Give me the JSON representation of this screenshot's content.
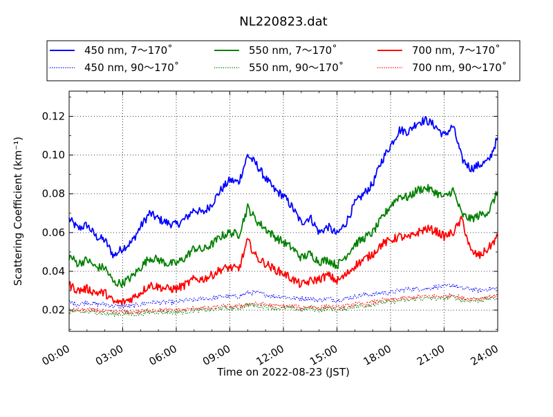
{
  "chart_data": {
    "type": "line",
    "title": "NL220823.dat",
    "xlabel": "Time on 2022-08-23 (JST)",
    "ylabel": "Scattering Coefficient (km⁻¹)",
    "x_unit": "hours",
    "xlim": [
      0,
      24
    ],
    "ylim": [
      0.009,
      0.133
    ],
    "x_ticks": [
      0,
      3,
      6,
      9,
      12,
      15,
      18,
      21,
      24
    ],
    "x_tick_labels": [
      "00:00",
      "03:00",
      "06:00",
      "09:00",
      "12:00",
      "15:00",
      "18:00",
      "21:00",
      "24:00"
    ],
    "y_ticks": [
      0.02,
      0.04,
      0.06,
      0.08,
      0.1,
      0.12
    ],
    "y_tick_labels": [
      "0.02",
      "0.04",
      "0.06",
      "0.08",
      "0.10",
      "0.12"
    ],
    "grid": true,
    "legend_position": "top",
    "x": [
      0,
      0.5,
      1,
      1.5,
      2,
      2.5,
      3,
      3.5,
      4,
      4.5,
      5,
      5.5,
      6,
      6.5,
      7,
      7.5,
      8,
      8.5,
      9,
      9.5,
      10,
      10.5,
      11,
      11.5,
      12,
      12.5,
      13,
      13.5,
      14,
      14.5,
      15,
      15.5,
      16,
      16.5,
      17,
      17.5,
      18,
      18.5,
      19,
      19.5,
      20,
      20.5,
      21,
      21.5,
      22,
      22.5,
      23,
      23.5,
      24
    ],
    "series": [
      {
        "name": "450 nm, 7～170˚",
        "color": "#0000ff",
        "style": "solid",
        "values": [
          0.067,
          0.062,
          0.064,
          0.058,
          0.056,
          0.048,
          0.052,
          0.055,
          0.063,
          0.07,
          0.067,
          0.065,
          0.064,
          0.067,
          0.072,
          0.07,
          0.075,
          0.082,
          0.087,
          0.086,
          0.1,
          0.095,
          0.088,
          0.082,
          0.079,
          0.073,
          0.065,
          0.068,
          0.06,
          0.063,
          0.059,
          0.065,
          0.075,
          0.08,
          0.085,
          0.097,
          0.105,
          0.113,
          0.112,
          0.117,
          0.118,
          0.115,
          0.11,
          0.115,
          0.098,
          0.093,
          0.095,
          0.097,
          0.109
        ]
      },
      {
        "name": "450 nm, 90～170˚",
        "color": "#0000ff",
        "style": "dotted",
        "values": [
          0.024,
          0.023,
          0.024,
          0.023,
          0.023,
          0.022,
          0.022,
          0.022,
          0.023,
          0.024,
          0.024,
          0.024,
          0.024,
          0.025,
          0.025,
          0.026,
          0.026,
          0.027,
          0.027,
          0.027,
          0.029,
          0.029,
          0.028,
          0.027,
          0.027,
          0.026,
          0.026,
          0.026,
          0.025,
          0.026,
          0.025,
          0.026,
          0.027,
          0.028,
          0.028,
          0.029,
          0.029,
          0.03,
          0.031,
          0.031,
          0.031,
          0.032,
          0.032,
          0.033,
          0.031,
          0.031,
          0.03,
          0.031,
          0.031
        ]
      },
      {
        "name": "550 nm, 7～170˚",
        "color": "#008000",
        "style": "solid",
        "values": [
          0.048,
          0.044,
          0.046,
          0.042,
          0.042,
          0.034,
          0.034,
          0.037,
          0.042,
          0.047,
          0.046,
          0.044,
          0.044,
          0.047,
          0.052,
          0.051,
          0.054,
          0.058,
          0.06,
          0.059,
          0.073,
          0.066,
          0.062,
          0.058,
          0.055,
          0.052,
          0.047,
          0.049,
          0.045,
          0.046,
          0.043,
          0.048,
          0.054,
          0.057,
          0.06,
          0.067,
          0.074,
          0.079,
          0.078,
          0.082,
          0.083,
          0.081,
          0.078,
          0.082,
          0.069,
          0.067,
          0.069,
          0.071,
          0.081
        ]
      },
      {
        "name": "550 nm, 90～170˚",
        "color": "#008000",
        "style": "dotted",
        "values": [
          0.019,
          0.019,
          0.019,
          0.019,
          0.018,
          0.018,
          0.018,
          0.018,
          0.018,
          0.019,
          0.019,
          0.019,
          0.019,
          0.019,
          0.02,
          0.02,
          0.02,
          0.021,
          0.021,
          0.021,
          0.023,
          0.022,
          0.022,
          0.021,
          0.021,
          0.021,
          0.02,
          0.021,
          0.02,
          0.021,
          0.02,
          0.021,
          0.022,
          0.022,
          0.023,
          0.024,
          0.024,
          0.025,
          0.025,
          0.026,
          0.026,
          0.026,
          0.026,
          0.027,
          0.025,
          0.025,
          0.025,
          0.026,
          0.026
        ]
      },
      {
        "name": "700 nm, 7～170˚",
        "color": "#ff0000",
        "style": "solid",
        "values": [
          0.033,
          0.03,
          0.031,
          0.029,
          0.029,
          0.024,
          0.024,
          0.026,
          0.029,
          0.033,
          0.032,
          0.031,
          0.031,
          0.033,
          0.036,
          0.036,
          0.038,
          0.041,
          0.042,
          0.041,
          0.056,
          0.047,
          0.044,
          0.041,
          0.039,
          0.036,
          0.033,
          0.035,
          0.036,
          0.038,
          0.035,
          0.038,
          0.043,
          0.046,
          0.049,
          0.054,
          0.056,
          0.058,
          0.057,
          0.06,
          0.062,
          0.061,
          0.058,
          0.06,
          0.067,
          0.05,
          0.048,
          0.052,
          0.058
        ]
      },
      {
        "name": "700 nm, 90～170˚",
        "color": "#ff0000",
        "style": "dotted",
        "values": [
          0.02,
          0.02,
          0.02,
          0.02,
          0.019,
          0.019,
          0.019,
          0.019,
          0.019,
          0.02,
          0.02,
          0.02,
          0.02,
          0.02,
          0.021,
          0.021,
          0.021,
          0.022,
          0.022,
          0.022,
          0.023,
          0.023,
          0.023,
          0.022,
          0.022,
          0.022,
          0.021,
          0.022,
          0.021,
          0.022,
          0.021,
          0.022,
          0.023,
          0.023,
          0.024,
          0.025,
          0.025,
          0.026,
          0.026,
          0.027,
          0.027,
          0.027,
          0.027,
          0.028,
          0.026,
          0.026,
          0.026,
          0.027,
          0.027
        ]
      }
    ]
  }
}
